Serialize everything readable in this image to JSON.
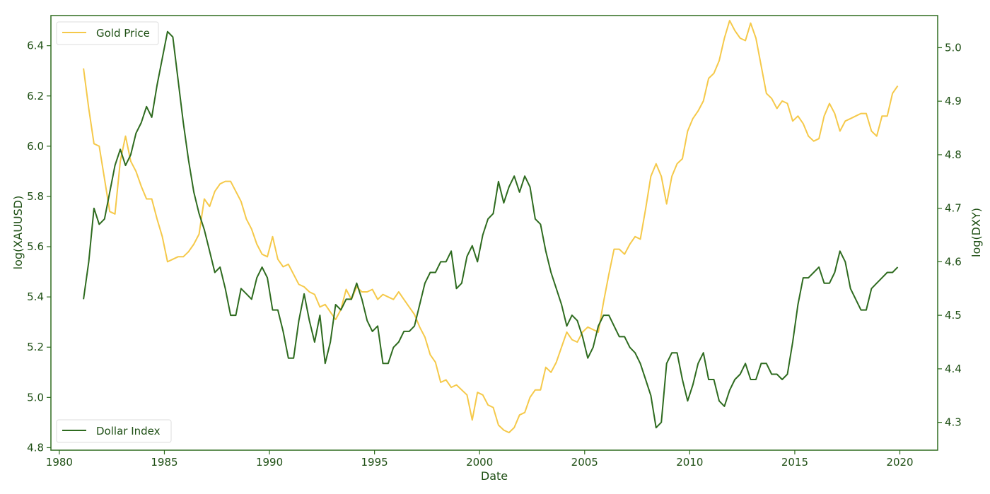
{
  "chart_data": {
    "type": "line",
    "xlabel": "Date",
    "ylabel_left": "log(XAUUSD)",
    "ylabel_right": "log(DXY)",
    "xlim": [
      1979.6,
      2021.8
    ],
    "ylim_left": [
      4.79,
      6.52
    ],
    "ylim_right": [
      4.248,
      5.06
    ],
    "x_ticks": [
      1980,
      1985,
      1990,
      1995,
      2000,
      2005,
      2010,
      2015,
      2020
    ],
    "y_ticks_left": [
      4.8,
      5.0,
      5.2,
      5.4,
      5.6,
      5.8,
      6.0,
      6.2,
      6.4
    ],
    "y_ticks_right": [
      4.3,
      4.4,
      4.5,
      4.6,
      4.7,
      4.8,
      4.9,
      5.0
    ],
    "x_tick_labels": [
      "1980",
      "1985",
      "1990",
      "1995",
      "2000",
      "2005",
      "2010",
      "2015",
      "2020"
    ],
    "y_tick_labels_left": [
      "4.8",
      "5.0",
      "5.2",
      "5.4",
      "5.6",
      "5.8",
      "6.0",
      "6.2",
      "6.4"
    ],
    "y_tick_labels_right": [
      "4.3",
      "4.4",
      "4.5",
      "4.6",
      "4.7",
      "4.8",
      "4.9",
      "5.0"
    ],
    "grid": false,
    "series": [
      {
        "name": "Gold Price",
        "axis": "left",
        "color": "#f5c94a",
        "legend_position": "upper-left",
        "x": [
          1981.15,
          1981.4,
          1981.65,
          1981.9,
          1982.15,
          1982.4,
          1982.65,
          1982.9,
          1983.15,
          1983.4,
          1983.65,
          1983.9,
          1984.15,
          1984.4,
          1984.65,
          1984.9,
          1985.15,
          1985.4,
          1985.65,
          1985.9,
          1986.15,
          1986.4,
          1986.65,
          1986.9,
          1987.15,
          1987.4,
          1987.65,
          1987.9,
          1988.15,
          1988.4,
          1988.65,
          1988.9,
          1989.15,
          1989.4,
          1989.65,
          1989.9,
          1990.15,
          1990.4,
          1990.65,
          1990.9,
          1991.15,
          1991.4,
          1991.65,
          1991.9,
          1992.15,
          1992.4,
          1992.65,
          1992.9,
          1993.15,
          1993.4,
          1993.65,
          1993.9,
          1994.15,
          1994.4,
          1994.65,
          1994.9,
          1995.15,
          1995.4,
          1995.65,
          1995.9,
          1996.15,
          1996.4,
          1996.65,
          1996.9,
          1997.15,
          1997.4,
          1997.65,
          1997.9,
          1998.15,
          1998.4,
          1998.65,
          1998.9,
          1999.15,
          1999.4,
          1999.65,
          1999.9,
          2000.15,
          2000.4,
          2000.65,
          2000.9,
          2001.15,
          2001.4,
          2001.65,
          2001.9,
          2002.15,
          2002.4,
          2002.65,
          2002.9,
          2003.15,
          2003.4,
          2003.65,
          2003.9,
          2004.15,
          2004.4,
          2004.65,
          2004.9,
          2005.15,
          2005.4,
          2005.65,
          2005.9,
          2006.15,
          2006.4,
          2006.65,
          2006.9,
          2007.15,
          2007.4,
          2007.65,
          2007.9,
          2008.15,
          2008.4,
          2008.65,
          2008.9,
          2009.15,
          2009.4,
          2009.65,
          2009.9,
          2010.15,
          2010.4,
          2010.65,
          2010.9,
          2011.15,
          2011.4,
          2011.65,
          2011.9,
          2012.15,
          2012.4,
          2012.65,
          2012.9,
          2013.15,
          2013.4,
          2013.65,
          2013.9,
          2014.15,
          2014.4,
          2014.65,
          2014.9,
          2015.15,
          2015.4,
          2015.65,
          2015.9,
          2016.15,
          2016.4,
          2016.65,
          2016.9,
          2017.15,
          2017.4,
          2017.65,
          2017.9,
          2018.15,
          2018.4,
          2018.65,
          2018.9,
          2019.15,
          2019.4,
          2019.65,
          2019.9
        ],
        "values": [
          6.31,
          6.15,
          6.01,
          6.0,
          5.87,
          5.74,
          5.73,
          5.94,
          6.04,
          5.94,
          5.9,
          5.84,
          5.79,
          5.79,
          5.71,
          5.64,
          5.54,
          5.55,
          5.56,
          5.56,
          5.58,
          5.61,
          5.65,
          5.79,
          5.76,
          5.82,
          5.85,
          5.86,
          5.86,
          5.82,
          5.78,
          5.71,
          5.67,
          5.61,
          5.57,
          5.56,
          5.64,
          5.55,
          5.52,
          5.53,
          5.49,
          5.45,
          5.44,
          5.42,
          5.41,
          5.36,
          5.37,
          5.34,
          5.31,
          5.35,
          5.43,
          5.39,
          5.44,
          5.42,
          5.42,
          5.43,
          5.39,
          5.41,
          5.4,
          5.39,
          5.42,
          5.39,
          5.36,
          5.33,
          5.28,
          5.24,
          5.17,
          5.14,
          5.06,
          5.07,
          5.04,
          5.05,
          5.03,
          5.01,
          4.91,
          5.02,
          5.01,
          4.97,
          4.96,
          4.89,
          4.87,
          4.86,
          4.88,
          4.93,
          4.94,
          5.0,
          5.03,
          5.03,
          5.12,
          5.1,
          5.14,
          5.2,
          5.26,
          5.23,
          5.22,
          5.26,
          5.28,
          5.27,
          5.26,
          5.38,
          5.49,
          5.59,
          5.59,
          5.57,
          5.61,
          5.64,
          5.63,
          5.75,
          5.88,
          5.93,
          5.88,
          5.77,
          5.88,
          5.93,
          5.95,
          6.06,
          6.11,
          6.14,
          6.18,
          6.27,
          6.29,
          6.34,
          6.43,
          6.5,
          6.46,
          6.43,
          6.42,
          6.49,
          6.43,
          6.32,
          6.21,
          6.19,
          6.15,
          6.18,
          6.17,
          6.1,
          6.12,
          6.09,
          6.04,
          6.02,
          6.03,
          6.12,
          6.17,
          6.13,
          6.06,
          6.1,
          6.11,
          6.12,
          6.13,
          6.13,
          6.06,
          6.04,
          6.12,
          6.12,
          6.21,
          6.24
        ]
      },
      {
        "name": "Dollar Index",
        "axis": "right",
        "color": "#2e6b1f",
        "legend_position": "lower-left",
        "x": [
          1981.15,
          1981.4,
          1981.65,
          1981.9,
          1982.15,
          1982.4,
          1982.65,
          1982.9,
          1983.15,
          1983.4,
          1983.65,
          1983.9,
          1984.15,
          1984.4,
          1984.65,
          1984.9,
          1985.15,
          1985.4,
          1985.65,
          1985.9,
          1986.15,
          1986.4,
          1986.65,
          1986.9,
          1987.15,
          1987.4,
          1987.65,
          1987.9,
          1988.15,
          1988.4,
          1988.65,
          1988.9,
          1989.15,
          1989.4,
          1989.65,
          1989.9,
          1990.15,
          1990.4,
          1990.65,
          1990.9,
          1991.15,
          1991.4,
          1991.65,
          1991.9,
          1992.15,
          1992.4,
          1992.65,
          1992.9,
          1993.15,
          1993.4,
          1993.65,
          1993.9,
          1994.15,
          1994.4,
          1994.65,
          1994.9,
          1995.15,
          1995.4,
          1995.65,
          1995.9,
          1996.15,
          1996.4,
          1996.65,
          1996.9,
          1997.15,
          1997.4,
          1997.65,
          1997.9,
          1998.15,
          1998.4,
          1998.65,
          1998.9,
          1999.15,
          1999.4,
          1999.65,
          1999.9,
          2000.15,
          2000.4,
          2000.65,
          2000.9,
          2001.15,
          2001.4,
          2001.65,
          2001.9,
          2002.15,
          2002.4,
          2002.65,
          2002.9,
          2003.15,
          2003.4,
          2003.65,
          2003.9,
          2004.15,
          2004.4,
          2004.65,
          2004.9,
          2005.15,
          2005.4,
          2005.65,
          2005.9,
          2006.15,
          2006.4,
          2006.65,
          2006.9,
          2007.15,
          2007.4,
          2007.65,
          2007.9,
          2008.15,
          2008.4,
          2008.65,
          2008.9,
          2009.15,
          2009.4,
          2009.65,
          2009.9,
          2010.15,
          2010.4,
          2010.65,
          2010.9,
          2011.15,
          2011.4,
          2011.65,
          2011.9,
          2012.15,
          2012.4,
          2012.65,
          2012.9,
          2013.15,
          2013.4,
          2013.65,
          2013.9,
          2014.15,
          2014.4,
          2014.65,
          2014.9,
          2015.15,
          2015.4,
          2015.65,
          2015.9,
          2016.15,
          2016.4,
          2016.65,
          2016.9,
          2017.15,
          2017.4,
          2017.65,
          2017.9,
          2018.15,
          2018.4,
          2018.65,
          2018.9,
          2019.15,
          2019.4,
          2019.65,
          2019.9
        ],
        "values": [
          4.53,
          4.6,
          4.7,
          4.67,
          4.68,
          4.73,
          4.78,
          4.81,
          4.78,
          4.8,
          4.84,
          4.86,
          4.89,
          4.87,
          4.93,
          4.98,
          5.03,
          5.02,
          4.94,
          4.86,
          4.79,
          4.73,
          4.69,
          4.66,
          4.62,
          4.58,
          4.59,
          4.55,
          4.5,
          4.5,
          4.55,
          4.54,
          4.53,
          4.57,
          4.59,
          4.57,
          4.51,
          4.51,
          4.47,
          4.42,
          4.42,
          4.49,
          4.54,
          4.49,
          4.45,
          4.5,
          4.41,
          4.45,
          4.52,
          4.51,
          4.53,
          4.53,
          4.56,
          4.53,
          4.49,
          4.47,
          4.48,
          4.41,
          4.41,
          4.44,
          4.45,
          4.47,
          4.47,
          4.48,
          4.52,
          4.56,
          4.58,
          4.58,
          4.6,
          4.6,
          4.62,
          4.55,
          4.56,
          4.61,
          4.63,
          4.6,
          4.65,
          4.68,
          4.69,
          4.75,
          4.71,
          4.74,
          4.76,
          4.73,
          4.76,
          4.74,
          4.68,
          4.67,
          4.62,
          4.58,
          4.55,
          4.52,
          4.48,
          4.5,
          4.49,
          4.46,
          4.42,
          4.44,
          4.48,
          4.5,
          4.5,
          4.48,
          4.46,
          4.46,
          4.44,
          4.43,
          4.41,
          4.38,
          4.35,
          4.29,
          4.3,
          4.41,
          4.43,
          4.43,
          4.38,
          4.34,
          4.37,
          4.41,
          4.43,
          4.38,
          4.38,
          4.34,
          4.33,
          4.36,
          4.38,
          4.39,
          4.41,
          4.38,
          4.38,
          4.41,
          4.41,
          4.39,
          4.39,
          4.38,
          4.39,
          4.45,
          4.52,
          4.57,
          4.57,
          4.58,
          4.59,
          4.56,
          4.56,
          4.58,
          4.62,
          4.6,
          4.55,
          4.53,
          4.51,
          4.51,
          4.55,
          4.56,
          4.57,
          4.58,
          4.58,
          4.59
        ]
      }
    ]
  }
}
